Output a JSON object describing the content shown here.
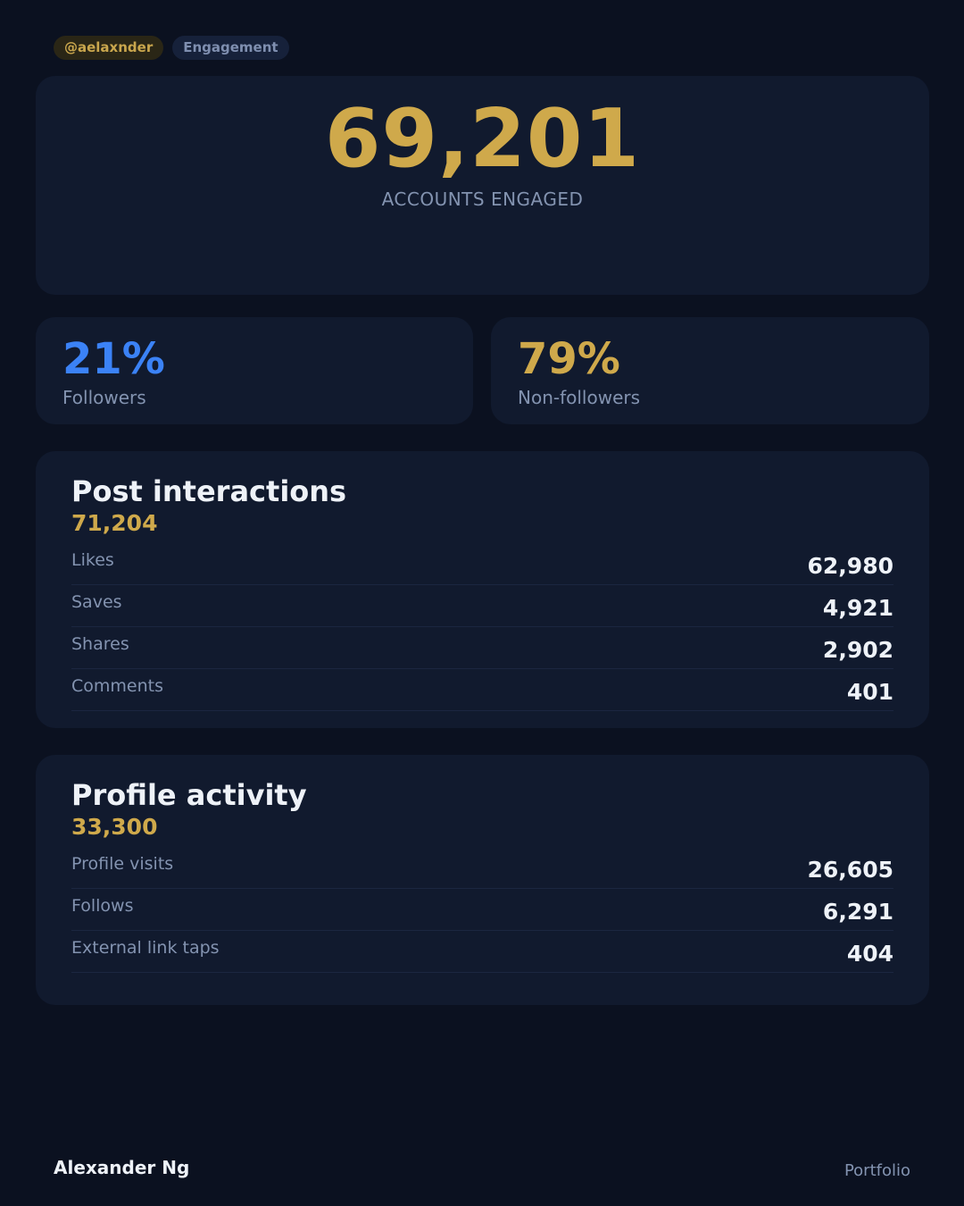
{
  "header": {
    "handle": "@aelaxnder",
    "section": "Engagement"
  },
  "hero": {
    "value": "69,201",
    "label": "ACCOUNTS ENGAGED"
  },
  "split": {
    "followers": {
      "percent": "21%",
      "label": "Followers"
    },
    "non_followers": {
      "percent": "79%",
      "label": "Non-followers"
    }
  },
  "post_interactions": {
    "title": "Post interactions",
    "total": "71,204",
    "rows": [
      {
        "label": "Likes",
        "value": "62,980"
      },
      {
        "label": "Saves",
        "value": "4,921"
      },
      {
        "label": "Shares",
        "value": "2,902"
      },
      {
        "label": "Comments",
        "value": "401"
      }
    ]
  },
  "profile_activity": {
    "title": "Profile activity",
    "total": "33,300",
    "rows": [
      {
        "label": "Profile visits",
        "value": "26,605"
      },
      {
        "label": "Follows",
        "value": "6,291"
      },
      {
        "label": "External link taps",
        "value": "404"
      }
    ]
  },
  "footer": {
    "name": "Alexander Ng",
    "link": "Portfolio"
  },
  "colors": {
    "background": "#0b1120",
    "card": "#111a2e",
    "accent_gold": "#cfa94b",
    "accent_blue": "#3b82f6",
    "muted_text": "#8393b0",
    "primary_text": "#eef2f8"
  }
}
